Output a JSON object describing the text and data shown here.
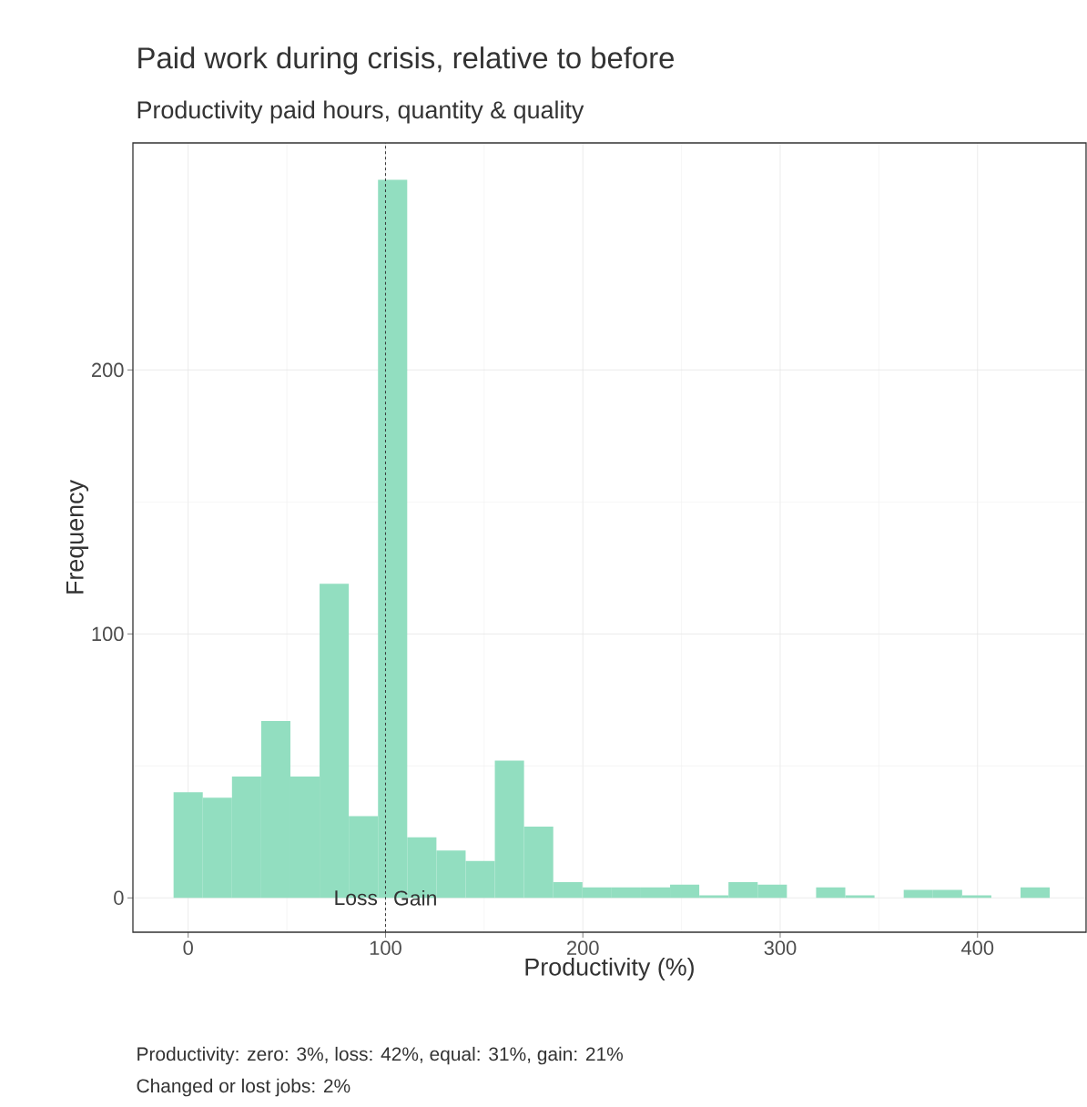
{
  "chart_data": {
    "type": "histogram",
    "title": "Paid work during crisis, relative to before",
    "subtitle": "Productivity paid hours, quantity & quality",
    "xlabel": "Productivity (%)",
    "ylabel": "Frequency",
    "bins": [
      -7.4,
      7.4,
      22.2,
      37.0,
      51.8,
      66.6,
      81.4,
      96.2,
      111.0,
      125.8,
      140.6,
      155.4,
      170.2,
      185.0,
      199.8,
      214.6,
      229.4,
      244.2,
      259.0,
      273.8,
      288.6,
      303.4,
      318.2,
      333.0,
      347.8,
      362.6,
      377.4,
      392.2,
      407.0,
      421.8,
      436.6
    ],
    "values": [
      40,
      38,
      46,
      67,
      46,
      119,
      31,
      272,
      23,
      18,
      14,
      52,
      27,
      6,
      4,
      4,
      4,
      5,
      1,
      6,
      5,
      0,
      4,
      1,
      0,
      3,
      3,
      1,
      0,
      4
    ],
    "color": "#92dec0",
    "xlim": [
      -28,
      455
    ],
    "ylim": [
      -13,
      286
    ],
    "xticks": [
      0,
      100,
      200,
      300,
      400
    ],
    "yticks": [
      0,
      100,
      200
    ],
    "grid": true,
    "ref_lines": [
      {
        "axis": "x",
        "value": 100,
        "line_style": "dashed",
        "color": "#333333"
      }
    ],
    "annotations": [
      "Loss",
      "Gain",
      "Productivity: zero: 3%, loss: 42%, equal: 31%, gain: 21%",
      "Changed or lost jobs: 2%"
    ]
  }
}
